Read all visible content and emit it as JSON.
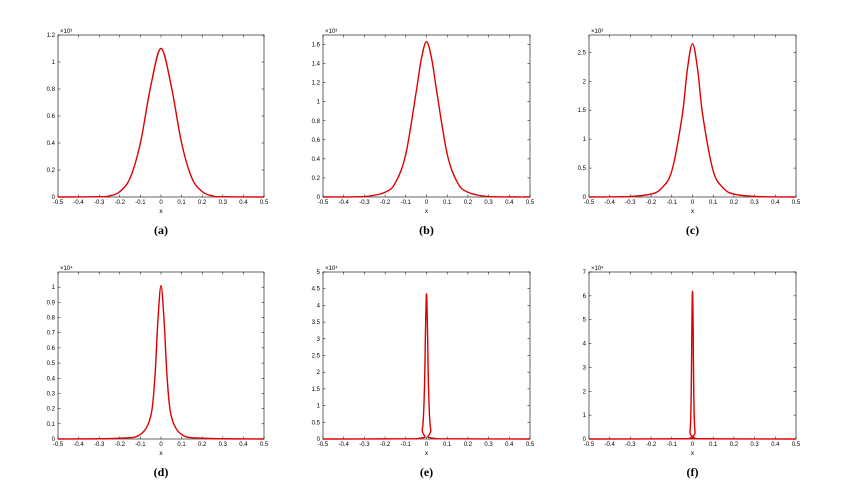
{
  "chart_data": [
    {
      "type": "line",
      "panel_label": "(a)",
      "xlabel": "x",
      "x_ticks": [
        "-0.5",
        "-0.4",
        "-0.3",
        "-0.2",
        "-0.1",
        "0",
        "0.1",
        "0.2",
        "0.3",
        "0.4",
        "0.5"
      ],
      "xlim": [
        -0.5,
        0.5
      ],
      "y_ticks": [
        "0",
        "0.2",
        "0.4",
        "0.6",
        "0.8",
        "1",
        "1.2"
      ],
      "ylim": [
        0,
        1.2
      ],
      "y_multiplier": "×10³",
      "line_color": "#dd0000",
      "series": [
        {
          "x": [
            -0.5,
            -0.3,
            -0.25,
            -0.2,
            -0.15,
            -0.1,
            -0.05,
            0,
            0.05,
            0.1,
            0.15,
            0.2,
            0.25,
            0.3,
            0.5
          ],
          "y": [
            0,
            0.002,
            0.008,
            0.04,
            0.14,
            0.4,
            0.82,
            1.1,
            0.82,
            0.4,
            0.14,
            0.04,
            0.008,
            0.002,
            0
          ]
        }
      ]
    },
    {
      "type": "line",
      "panel_label": "(b)",
      "xlabel": "x",
      "x_ticks": [
        "-0.5",
        "-0.4",
        "-0.3",
        "-0.2",
        "-0.1",
        "0",
        "0.1",
        "0.2",
        "0.3",
        "0.4",
        "0.5"
      ],
      "xlim": [
        -0.5,
        0.5
      ],
      "y_ticks": [
        "0",
        "0.2",
        "0.4",
        "0.6",
        "0.8",
        "1",
        "1.2",
        "1.4",
        "1.6"
      ],
      "ylim": [
        0,
        1.7
      ],
      "y_multiplier": "×10³",
      "line_color": "#dd0000",
      "series": [
        {
          "x": [
            -0.5,
            -0.3,
            -0.2,
            -0.15,
            -0.1,
            -0.05,
            -0.025,
            0,
            0.025,
            0.05,
            0.1,
            0.15,
            0.2,
            0.3,
            0.5
          ],
          "y": [
            0,
            0.005,
            0.05,
            0.15,
            0.45,
            1.1,
            1.45,
            1.63,
            1.45,
            1.1,
            0.45,
            0.15,
            0.05,
            0.005,
            0
          ]
        }
      ]
    },
    {
      "type": "line",
      "panel_label": "(c)",
      "xlabel": "x",
      "x_ticks": [
        "-0.5",
        "-0.4",
        "-0.3",
        "-0.2",
        "-0.1",
        "0",
        "0.1",
        "0.2",
        "0.3",
        "0.4",
        "0.5"
      ],
      "xlim": [
        -0.5,
        0.5
      ],
      "y_ticks": [
        "0",
        "0.5",
        "1",
        "1.5",
        "2",
        "2.5"
      ],
      "ylim": [
        0,
        2.8
      ],
      "y_multiplier": "×10³",
      "line_color": "#dd0000",
      "series": [
        {
          "x": [
            -0.5,
            -0.3,
            -0.2,
            -0.15,
            -0.1,
            -0.05,
            -0.025,
            0,
            0.025,
            0.05,
            0.1,
            0.15,
            0.2,
            0.3,
            0.5
          ],
          "y": [
            0,
            0.01,
            0.05,
            0.15,
            0.45,
            1.4,
            2.2,
            2.65,
            2.2,
            1.4,
            0.45,
            0.15,
            0.05,
            0.01,
            0
          ]
        }
      ]
    },
    {
      "type": "line",
      "panel_label": "(d)",
      "xlabel": "x",
      "x_ticks": [
        "-0.5",
        "-0.4",
        "-0.3",
        "-0.2",
        "-0.1",
        "0",
        "0.1",
        "0.2",
        "0.3",
        "0.4",
        "0.5"
      ],
      "xlim": [
        -0.5,
        0.5
      ],
      "y_ticks": [
        "0",
        "0.1",
        "0.2",
        "0.3",
        "0.4",
        "0.5",
        "0.6",
        "0.7",
        "0.8",
        "0.9",
        "1"
      ],
      "ylim": [
        0,
        1.1
      ],
      "y_multiplier": "×10⁴",
      "line_color": "#dd0000",
      "series": [
        {
          "x": [
            -0.5,
            -0.2,
            -0.1,
            -0.05,
            -0.03,
            -0.015,
            0,
            0.015,
            0.03,
            0.05,
            0.1,
            0.2,
            0.5
          ],
          "y": [
            0,
            0.005,
            0.03,
            0.15,
            0.4,
            0.78,
            1.01,
            0.78,
            0.4,
            0.15,
            0.03,
            0.005,
            0
          ]
        }
      ]
    },
    {
      "type": "line",
      "panel_label": "(e)",
      "xlabel": "x",
      "x_ticks": [
        "-0.5",
        "-0.4",
        "-0.3",
        "-0.2",
        "-0.1",
        "0",
        "0.1",
        "0.2",
        "0.3",
        "0.4",
        "0.5"
      ],
      "xlim": [
        -0.5,
        0.5
      ],
      "y_ticks": [
        "0",
        "0.5",
        "1",
        "1.5",
        "2",
        "2.5",
        "3",
        "3.5",
        "4",
        "4.5",
        "5"
      ],
      "ylim": [
        0,
        5
      ],
      "y_multiplier": "×10⁴",
      "line_color": "#dd0000",
      "series": [
        {
          "x": [
            -0.5,
            -0.05,
            -0.02,
            -0.01,
            -0.005,
            0,
            0.005,
            0.01,
            0.02,
            0.05,
            0.5
          ],
          "y": [
            0,
            0.01,
            0.3,
            1.5,
            3.2,
            4.35,
            3.2,
            1.5,
            0.3,
            0.01,
            0
          ]
        }
      ]
    },
    {
      "type": "line",
      "panel_label": "(f)",
      "xlabel": "x",
      "x_ticks": [
        "-0.5",
        "-0.4",
        "-0.3",
        "-0.2",
        "-0.1",
        "0",
        "0.1",
        "0.2",
        "0.3",
        "0.4",
        "0.5"
      ],
      "xlim": [
        -0.5,
        0.5
      ],
      "y_ticks": [
        "0",
        "1",
        "2",
        "3",
        "4",
        "5",
        "6",
        "7"
      ],
      "ylim": [
        0,
        7
      ],
      "y_multiplier": "×10⁴",
      "line_color": "#dd0000",
      "series": [
        {
          "x": [
            -0.5,
            -0.03,
            -0.012,
            -0.006,
            -0.003,
            0,
            0.003,
            0.006,
            0.012,
            0.03,
            0.5
          ],
          "y": [
            0,
            0.01,
            0.3,
            2.0,
            4.8,
            6.2,
            4.8,
            2.0,
            0.3,
            0.01,
            0
          ]
        }
      ]
    }
  ]
}
